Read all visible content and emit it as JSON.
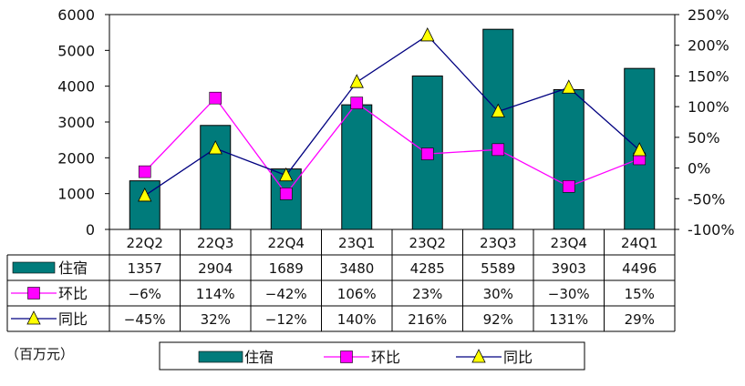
{
  "chart_data": {
    "type": "bar",
    "categories": [
      "22Q2",
      "22Q3",
      "22Q4",
      "23Q1",
      "23Q2",
      "23Q3",
      "23Q4",
      "24Q1"
    ],
    "series": [
      {
        "name": "住宿",
        "kind": "bar",
        "axis": "left",
        "color": "#007B7B",
        "values": [
          1357,
          2904,
          1689,
          3480,
          4285,
          5589,
          3903,
          4496
        ],
        "labels": [
          "1357",
          "2904",
          "1689",
          "3480",
          "4285",
          "5589",
          "3903",
          "4496"
        ]
      },
      {
        "name": "环比",
        "kind": "line",
        "axis": "right",
        "color": "#FF00FF",
        "marker": "square",
        "values": [
          -6,
          114,
          -42,
          106,
          23,
          30,
          -30,
          15
        ],
        "labels": [
          "-6%",
          "114%",
          "-42%",
          "106%",
          "23%",
          "30%",
          "-30%",
          "15%"
        ]
      },
      {
        "name": "同比",
        "kind": "line",
        "axis": "right",
        "color": "#000080",
        "marker": "triangle",
        "marker_color": "#FFFF00",
        "values": [
          -45,
          32,
          -12,
          140,
          216,
          92,
          131,
          29
        ],
        "labels": [
          "-45%",
          "32%",
          "-12%",
          "140%",
          "216%",
          "92%",
          "131%",
          "29%"
        ]
      }
    ],
    "left_axis": {
      "ylim": [
        0,
        6000
      ],
      "ticks": [
        "0",
        "1000",
        "2000",
        "3000",
        "4000",
        "5000",
        "6000"
      ]
    },
    "right_axis": {
      "ylim": [
        -100,
        250
      ],
      "ticks": [
        "-100%",
        "-50%",
        "0%",
        "50%",
        "100%",
        "150%",
        "200%",
        "250%"
      ]
    },
    "unit_note": "（百万元）",
    "legend": {
      "position": "bottom",
      "items": [
        "住宿",
        "环比",
        "同比"
      ]
    }
  }
}
